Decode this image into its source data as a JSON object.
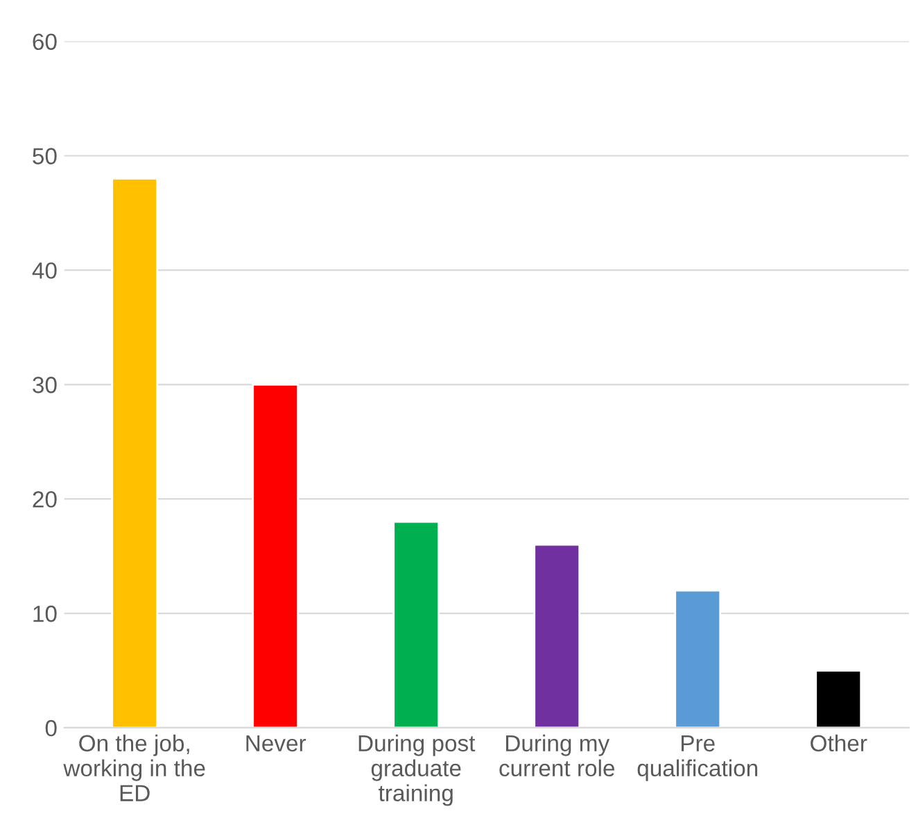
{
  "chart_data": {
    "type": "bar",
    "categories": [
      "On the job, working in the ED",
      "Never",
      "During post graduate training",
      "During my current role",
      "Pre qualification",
      "Other"
    ],
    "values": [
      48,
      30,
      18,
      16,
      12,
      5
    ],
    "colors": [
      "#ffc000",
      "#ff0000",
      "#00b050",
      "#7030a0",
      "#5b9bd5",
      "#000000"
    ],
    "ylim": [
      0,
      60
    ],
    "yticks": [
      0,
      10,
      20,
      30,
      40,
      50,
      60
    ],
    "grid": "y",
    "legend": false
  }
}
